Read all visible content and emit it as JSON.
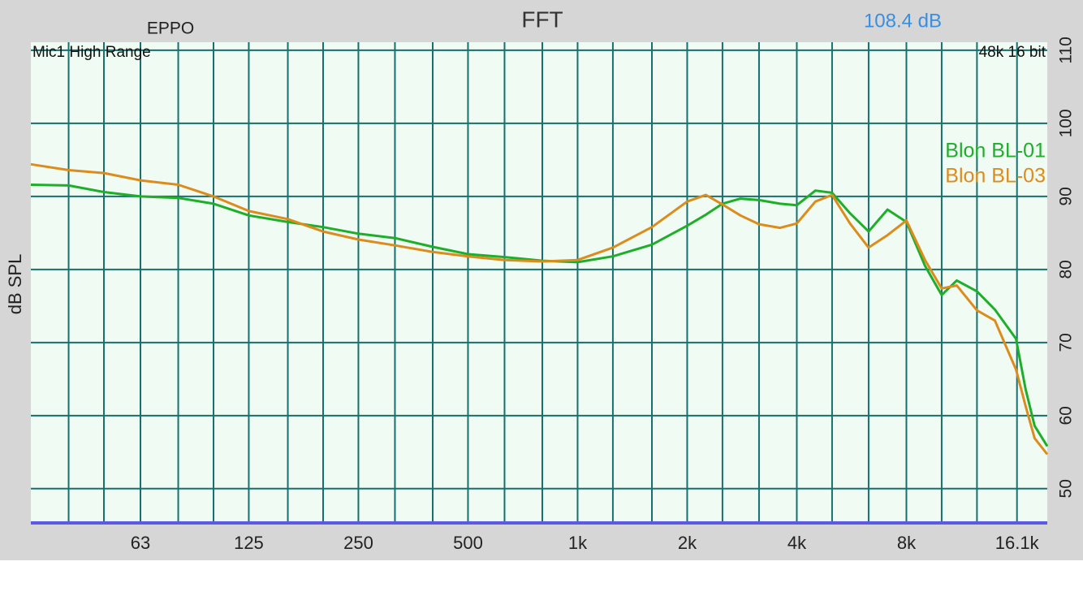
{
  "chart_data": {
    "type": "line",
    "title": "FFT",
    "left_label": "EPPO",
    "level": "108.4 dB",
    "top_left_note": "Mic1 High Range",
    "top_right_note": "48k 16 bit",
    "y_label": "dB SPL",
    "log_x": true,
    "grid": true,
    "legend_position": "upper right",
    "xlim": [
      31.5,
      19500
    ],
    "ylim": [
      45.2,
      111.1
    ],
    "xticks": [
      63,
      125,
      250,
      500,
      {
        "value": 1000,
        "label": "1k"
      },
      {
        "value": 2000,
        "label": "2k"
      },
      {
        "value": 4000,
        "label": "4k"
      },
      {
        "value": 8000,
        "label": "8k"
      },
      {
        "value": 16100,
        "label": "16.1k"
      }
    ],
    "xgrid": [
      40,
      50,
      63,
      80,
      100,
      125,
      160,
      200,
      250,
      315,
      400,
      500,
      630,
      800,
      1000,
      1250,
      1600,
      2000,
      2500,
      3150,
      4000,
      5000,
      6300,
      8000,
      10000,
      12500,
      16100
    ],
    "yticks": [
      50,
      60,
      70,
      80,
      90,
      100,
      110
    ],
    "x": [
      31.5,
      40,
      50,
      63,
      80,
      100,
      125,
      160,
      200,
      250,
      315,
      400,
      500,
      630,
      800,
      1000,
      1250,
      1600,
      2000,
      2250,
      2500,
      2800,
      3150,
      3600,
      4000,
      4500,
      5000,
      5600,
      6300,
      7100,
      8000,
      9000,
      10000,
      11000,
      12500,
      14000,
      16000,
      17000,
      18000,
      19500
    ],
    "series": [
      {
        "name": "Blon BL-01",
        "color": "#1fae2a",
        "values": [
          91.6,
          91.5,
          90.6,
          90.0,
          89.8,
          89.0,
          87.4,
          86.5,
          85.8,
          84.9,
          84.3,
          83.1,
          82.1,
          81.7,
          81.2,
          81.0,
          81.8,
          83.4,
          86.0,
          87.5,
          89.0,
          89.7,
          89.5,
          89.0,
          88.8,
          90.8,
          90.5,
          87.7,
          85.2,
          88.2,
          86.5,
          80.5,
          76.5,
          78.5,
          77.0,
          74.5,
          70.5,
          63.6,
          58.6,
          55.8
        ]
      },
      {
        "name": "Blon BL-03",
        "color": "#dc8c1c",
        "values": [
          94.4,
          93.6,
          93.2,
          92.2,
          91.6,
          90.0,
          88.0,
          86.9,
          85.2,
          84.1,
          83.3,
          82.4,
          81.8,
          81.3,
          81.1,
          81.3,
          83.0,
          85.8,
          89.3,
          90.2,
          88.9,
          87.4,
          86.2,
          85.7,
          86.3,
          89.3,
          90.2,
          86.3,
          83.0,
          84.7,
          86.7,
          81.3,
          77.4,
          77.8,
          74.4,
          73.0,
          66.3,
          61.3,
          56.9,
          54.7
        ]
      }
    ]
  }
}
